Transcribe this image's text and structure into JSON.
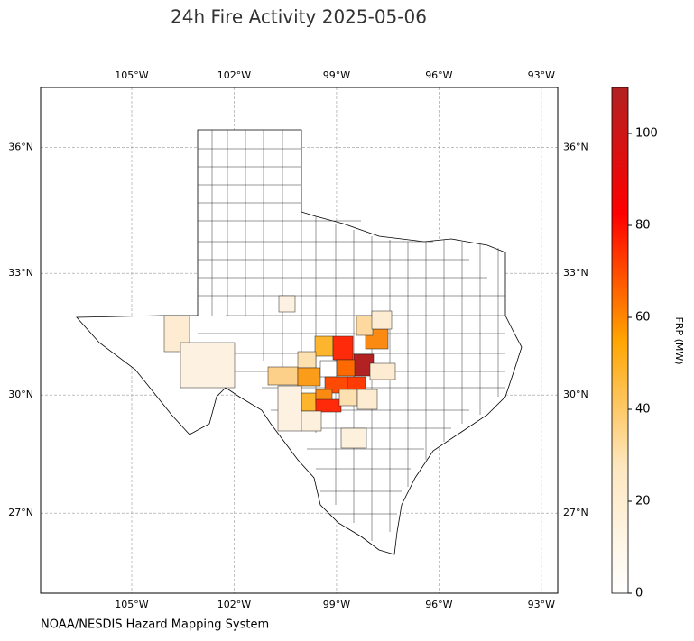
{
  "chart_data": {
    "type": "map",
    "title": "24h Fire Activity 2025-05-06",
    "projection": "mercator",
    "xlim": [
      -107.67,
      -92.52
    ],
    "ylim": [
      24.92,
      37.39
    ],
    "xticks": [
      {
        "value": -105,
        "label": "105°W"
      },
      {
        "value": -102,
        "label": "102°W"
      },
      {
        "value": -99,
        "label": "99°W"
      },
      {
        "value": -96,
        "label": "96°W"
      },
      {
        "value": -93,
        "label": "93°W"
      }
    ],
    "yticks": [
      {
        "value": 36,
        "label": "36°N"
      },
      {
        "value": 33,
        "label": "33°N"
      },
      {
        "value": 30,
        "label": "30°N"
      },
      {
        "value": 27,
        "label": "27°N"
      }
    ],
    "grid": true,
    "colorbar": {
      "label": "FRP (MW)",
      "clim": [
        0,
        110
      ],
      "ticks": [
        0,
        20,
        40,
        60,
        80,
        100
      ],
      "colors": [
        "#ffffff",
        "#fde7c0",
        "#ffa500",
        "#ff0000",
        "#b22222"
      ]
    },
    "source": "NOAA/NESDIS Hazard Mapping System"
  }
}
